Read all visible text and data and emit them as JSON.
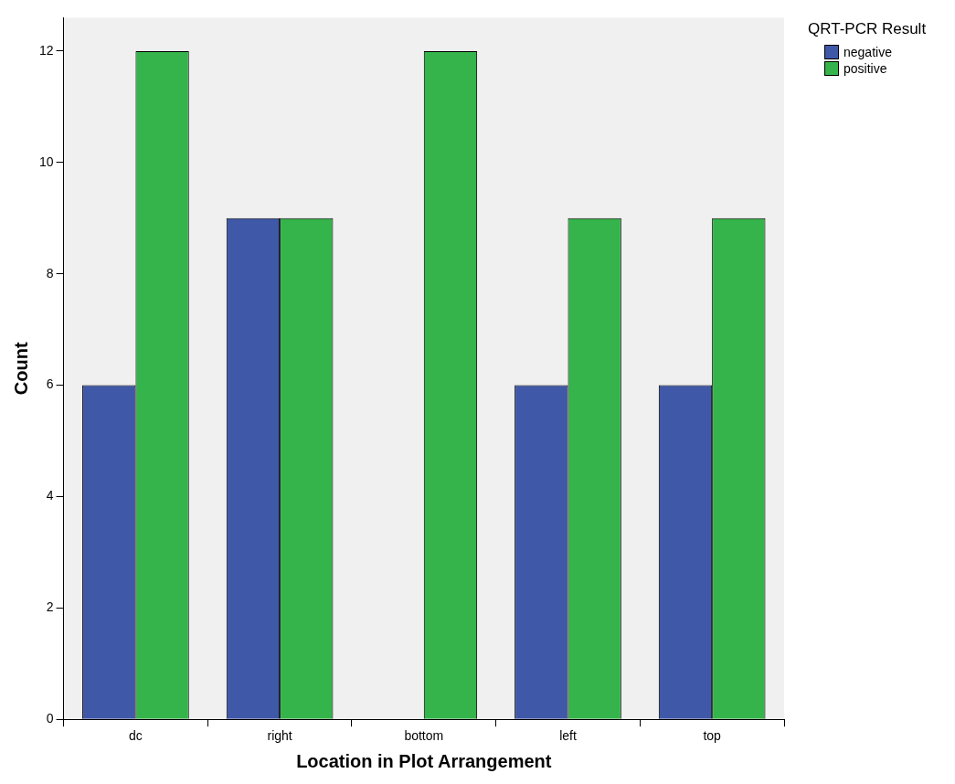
{
  "chart_data": {
    "type": "bar",
    "xlabel": "Location in Plot Arrangement",
    "ylabel": "Count",
    "legend_title": "QRT-PCR Result",
    "categories": [
      "dc",
      "right",
      "bottom",
      "left",
      "top"
    ],
    "series": [
      {
        "name": "negative",
        "color": "#3f58a8",
        "values": [
          6,
          9,
          0,
          6,
          6
        ]
      },
      {
        "name": "positive",
        "color": "#34b44a",
        "values": [
          12,
          9,
          12,
          9,
          9
        ]
      }
    ],
    "ylim": [
      0,
      12.6
    ],
    "yticks": [
      0,
      2,
      4,
      6,
      8,
      10,
      12
    ],
    "grid": false,
    "legend": "top right"
  }
}
